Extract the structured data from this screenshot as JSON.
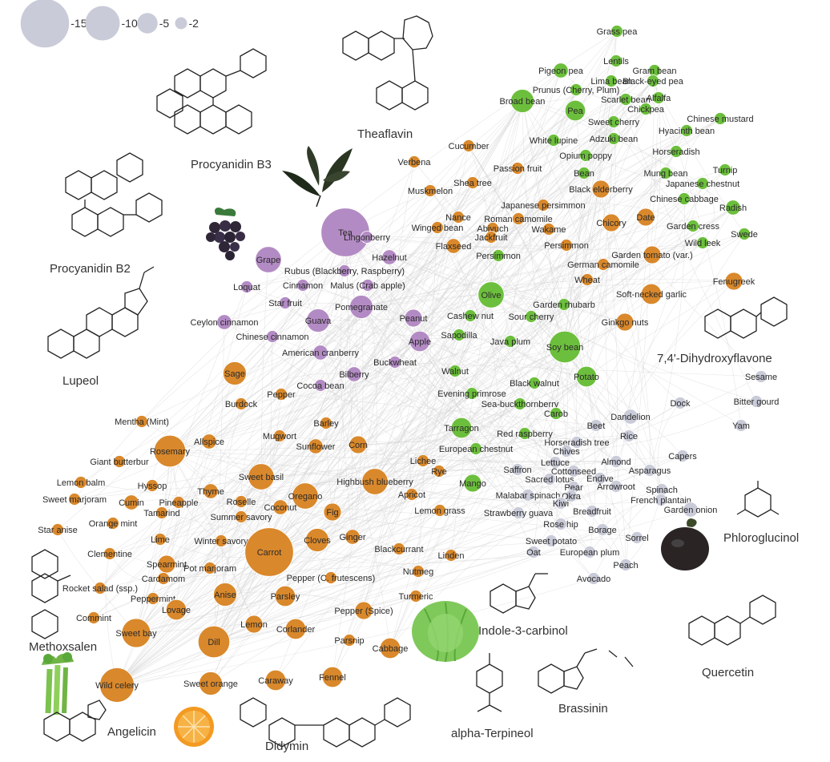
{
  "colors": {
    "purple": "#b38bc4",
    "orange": "#d9882b",
    "green": "#6cbf3c",
    "grey": "#c9cbd8",
    "edge": "#d4d4d4"
  },
  "legend": [
    {
      "value": 15,
      "label": "-15"
    },
    {
      "value": 10,
      "label": "-10"
    },
    {
      "value": 5,
      "label": "-5"
    },
    {
      "value": 2,
      "label": "-2"
    }
  ],
  "compounds": [
    {
      "name": "Procyanidin B3",
      "label": "Procyanidin B3"
    },
    {
      "name": "Theaflavin",
      "label": "Theaflavin"
    },
    {
      "name": "Procyanidin B2",
      "label": "Procyanidin B2"
    },
    {
      "name": "Lupeol",
      "label": "Lupeol"
    },
    {
      "name": "7,4'-Dihydroxyflavone",
      "label": "7,4'-Dihydroxyflavone"
    },
    {
      "name": "Phloroglucinol",
      "label": "Phloroglucinol"
    },
    {
      "name": "Quercetin",
      "label": "Quercetin"
    },
    {
      "name": "Brassinin",
      "label": "Brassinin"
    },
    {
      "name": "alpha-Terpineol",
      "label": "alpha-Terpineol"
    },
    {
      "name": "Indole-3-carbinol",
      "label": "Indole-3-carbinol"
    },
    {
      "name": "Didymin",
      "label": "Didymin"
    },
    {
      "name": "Angelicin",
      "label": "Angelicin"
    },
    {
      "name": "Methoxsalen",
      "label": "Methoxsalen"
    }
  ],
  "pictures": [
    {
      "name": "tea-leaf",
      "label": "tea leaves"
    },
    {
      "name": "grapes",
      "label": "grapes"
    },
    {
      "name": "cabbage",
      "label": "cabbage"
    },
    {
      "name": "eggplant",
      "label": "eggplant"
    },
    {
      "name": "celery",
      "label": "celery"
    },
    {
      "name": "orange-slice",
      "label": "orange"
    }
  ],
  "foods": [
    {
      "name": "Tea",
      "c": "purple",
      "size": 15
    },
    {
      "name": "Grape",
      "c": "purple",
      "size": 7
    },
    {
      "name": "Lingonberry",
      "c": "purple",
      "size": 2
    },
    {
      "name": "Hazelnut",
      "c": "purple",
      "size": 3
    },
    {
      "name": "Rubus (Blackberry, Raspberry)",
      "c": "purple",
      "size": 2
    },
    {
      "name": "Loquat",
      "c": "purple",
      "size": 2
    },
    {
      "name": "Cinnamon",
      "c": "purple",
      "size": 2
    },
    {
      "name": "Malus (Crab apple)",
      "c": "purple",
      "size": 2
    },
    {
      "name": "Star fruit",
      "c": "purple",
      "size": 2
    },
    {
      "name": "Pomegranate",
      "c": "purple",
      "size": 6
    },
    {
      "name": "Ceylon cinnamon",
      "c": "purple",
      "size": 3
    },
    {
      "name": "Guava",
      "c": "purple",
      "size": 6
    },
    {
      "name": "Peanut",
      "c": "purple",
      "size": 4
    },
    {
      "name": "Chinese cinnamon",
      "c": "purple",
      "size": 2
    },
    {
      "name": "Apple",
      "c": "purple",
      "size": 5
    },
    {
      "name": "American cranberry",
      "c": "purple",
      "size": 3
    },
    {
      "name": "Buckwheat",
      "c": "purple",
      "size": 2
    },
    {
      "name": "Bilberry",
      "c": "purple",
      "size": 3
    },
    {
      "name": "Cocoa bean",
      "c": "purple",
      "size": 2
    },
    {
      "name": "Grass pea",
      "c": "green",
      "size": 2
    },
    {
      "name": "Lentils",
      "c": "green",
      "size": 2
    },
    {
      "name": "Pigeon pea",
      "c": "green",
      "size": 3
    },
    {
      "name": "Gram bean",
      "c": "green",
      "size": 2
    },
    {
      "name": "Lima bean",
      "c": "green",
      "size": 2
    },
    {
      "name": "Black-eyed pea",
      "c": "green",
      "size": 2
    },
    {
      "name": "Prunus (Cherry, Plum)",
      "c": "green",
      "size": 2
    },
    {
      "name": "Broad bean",
      "c": "green",
      "size": 6
    },
    {
      "name": "Scarlet bean",
      "c": "green",
      "size": 2
    },
    {
      "name": "Alfalfa",
      "c": "green",
      "size": 2
    },
    {
      "name": "Pea",
      "c": "green",
      "size": 5
    },
    {
      "name": "Chickpea",
      "c": "green",
      "size": 2
    },
    {
      "name": "Chinese mustard",
      "c": "green",
      "size": 2
    },
    {
      "name": "Sweet cherry",
      "c": "green",
      "size": 2
    },
    {
      "name": "Hyacinth bean",
      "c": "green",
      "size": 2
    },
    {
      "name": "White lupine",
      "c": "green",
      "size": 2
    },
    {
      "name": "Adzuki bean",
      "c": "green",
      "size": 2
    },
    {
      "name": "Opium poppy",
      "c": "green",
      "size": 2
    },
    {
      "name": "Horseradish",
      "c": "green",
      "size": 2
    },
    {
      "name": "Turnip",
      "c": "green",
      "size": 2
    },
    {
      "name": "Bean",
      "c": "green",
      "size": 2
    },
    {
      "name": "Mung bean",
      "c": "green",
      "size": 2
    },
    {
      "name": "Japanese chestnut",
      "c": "green",
      "size": 2
    },
    {
      "name": "Chinese cabbage",
      "c": "green",
      "size": 2
    },
    {
      "name": "Radish",
      "c": "green",
      "size": 3
    },
    {
      "name": "Garden cress",
      "c": "green",
      "size": 2
    },
    {
      "name": "Swede",
      "c": "green",
      "size": 2
    },
    {
      "name": "Wild leek",
      "c": "green",
      "size": 2
    },
    {
      "name": "Olive",
      "c": "green",
      "size": 7
    },
    {
      "name": "Soy bean",
      "c": "green",
      "size": 9
    },
    {
      "name": "Potato",
      "c": "green",
      "size": 5
    },
    {
      "name": "Garden rhubarb",
      "c": "green",
      "size": 2
    },
    {
      "name": "Sour cherry",
      "c": "green",
      "size": 2
    },
    {
      "name": "Sea-buckthornberry",
      "c": "green",
      "size": 2
    },
    {
      "name": "Tarragon",
      "c": "green",
      "size": 5
    },
    {
      "name": "Mango",
      "c": "green",
      "size": 4
    },
    {
      "name": "Black walnut",
      "c": "green",
      "size": 2
    },
    {
      "name": "Walnut",
      "c": "green",
      "size": 2
    },
    {
      "name": "Evening primrose",
      "c": "green",
      "size": 2
    },
    {
      "name": "Carob",
      "c": "green",
      "size": 2
    },
    {
      "name": "Red raspberry",
      "c": "green",
      "size": 2
    },
    {
      "name": "European chestnut",
      "c": "green",
      "size": 2
    },
    {
      "name": "Persimmon",
      "c": "green",
      "size": 2
    },
    {
      "name": "Cashew nut",
      "c": "green",
      "size": 2
    },
    {
      "name": "Sapodilla",
      "c": "green",
      "size": 2
    },
    {
      "name": "Java plum",
      "c": "green",
      "size": 2
    },
    {
      "name": "Cucumber",
      "c": "orange",
      "size": 2
    },
    {
      "name": "Verbena",
      "c": "orange",
      "size": 2
    },
    {
      "name": "Passion fruit",
      "c": "orange",
      "size": 2
    },
    {
      "name": "Shea tree",
      "c": "orange",
      "size": 2
    },
    {
      "name": "Muskmelon",
      "c": "orange",
      "size": 2
    },
    {
      "name": "Black elderberry",
      "c": "orange",
      "size": 4
    },
    {
      "name": "Japanese persimmon",
      "c": "orange",
      "size": 2
    },
    {
      "name": "Nance",
      "c": "orange",
      "size": 2
    },
    {
      "name": "Roman camomile",
      "c": "orange",
      "size": 2
    },
    {
      "name": "Chicory",
      "c": "orange",
      "size": 4
    },
    {
      "name": "Date",
      "c": "orange",
      "size": 4
    },
    {
      "name": "Winged bean",
      "c": "orange",
      "size": 2
    },
    {
      "name": "Abiyuch",
      "c": "orange",
      "size": 2
    },
    {
      "name": "Wakame",
      "c": "orange",
      "size": 2
    },
    {
      "name": "Jackfruit",
      "c": "orange",
      "size": 2
    },
    {
      "name": "Flaxseed",
      "c": "orange",
      "size": 3
    },
    {
      "name": "Persimmon (orange)",
      "c": "orange",
      "size": 2
    },
    {
      "name": "German camomile",
      "c": "orange",
      "size": 2
    },
    {
      "name": "Garden tomato (var.)",
      "c": "orange",
      "size": 4
    },
    {
      "name": "Fenugreek",
      "c": "orange",
      "size": 4
    },
    {
      "name": "Wheat",
      "c": "orange",
      "size": 2
    },
    {
      "name": "Soft-necked garlic",
      "c": "orange",
      "size": 5
    },
    {
      "name": "Ginkgo nuts",
      "c": "orange",
      "size": 4
    },
    {
      "name": "Sage",
      "c": "orange",
      "size": 6
    },
    {
      "name": "Burdock",
      "c": "orange",
      "size": 2
    },
    {
      "name": "Pepper",
      "c": "orange",
      "size": 2
    },
    {
      "name": "Mentha (Mint)",
      "c": "orange",
      "size": 2
    },
    {
      "name": "Barley",
      "c": "orange",
      "size": 2
    },
    {
      "name": "Allspice",
      "c": "orange",
      "size": 3
    },
    {
      "name": "Mugwort",
      "c": "orange",
      "size": 2
    },
    {
      "name": "Sunflower",
      "c": "orange",
      "size": 3
    },
    {
      "name": "Corn",
      "c": "orange",
      "size": 4
    },
    {
      "name": "Rosemary",
      "c": "orange",
      "size": 9
    },
    {
      "name": "Giant butterbur",
      "c": "orange",
      "size": 2
    },
    {
      "name": "Sweet basil",
      "c": "orange",
      "size": 7
    },
    {
      "name": "Highbush blueberry",
      "c": "orange",
      "size": 7
    },
    {
      "name": "Lemon balm",
      "c": "orange",
      "size": 2
    },
    {
      "name": "Hyssop",
      "c": "orange",
      "size": 2
    },
    {
      "name": "Thyme",
      "c": "orange",
      "size": 3
    },
    {
      "name": "Oregano",
      "c": "orange",
      "size": 7
    },
    {
      "name": "Sweet marjoram",
      "c": "orange",
      "size": 2
    },
    {
      "name": "Cumin",
      "c": "orange",
      "size": 3
    },
    {
      "name": "Pineapple",
      "c": "orange",
      "size": 2
    },
    {
      "name": "Roselle",
      "c": "orange",
      "size": 2
    },
    {
      "name": "Coconut",
      "c": "orange",
      "size": 3
    },
    {
      "name": "Fig",
      "c": "orange",
      "size": 4
    },
    {
      "name": "Tamarind",
      "c": "orange",
      "size": 2
    },
    {
      "name": "Summer savory",
      "c": "orange",
      "size": 2
    },
    {
      "name": "Apricot",
      "c": "orange",
      "size": 2
    },
    {
      "name": "Lemon grass",
      "c": "orange",
      "size": 2
    },
    {
      "name": "Star anise",
      "c": "orange",
      "size": 2
    },
    {
      "name": "Orange mint",
      "c": "orange",
      "size": 2
    },
    {
      "name": "Lime",
      "c": "orange",
      "size": 2
    },
    {
      "name": "Winter savory",
      "c": "orange",
      "size": 2
    },
    {
      "name": "Carrot",
      "c": "orange",
      "size": 15
    },
    {
      "name": "Cloves",
      "c": "orange",
      "size": 6
    },
    {
      "name": "Ginger",
      "c": "orange",
      "size": 3
    },
    {
      "name": "Blackcurrant",
      "c": "orange",
      "size": 2
    },
    {
      "name": "Linden",
      "c": "orange",
      "size": 2
    },
    {
      "name": "Clementine",
      "c": "orange",
      "size": 2
    },
    {
      "name": "Spearmint",
      "c": "orange",
      "size": 4
    },
    {
      "name": "Pot marjoram",
      "c": "orange",
      "size": 2
    },
    {
      "name": "Cardamom",
      "c": "orange",
      "size": 2
    },
    {
      "name": "Nutmeg",
      "c": "orange",
      "size": 2
    },
    {
      "name": "Pepper (C. frutescens)",
      "c": "orange",
      "size": 2
    },
    {
      "name": "Rocket salad (ssp.)",
      "c": "orange",
      "size": 2
    },
    {
      "name": "Anise",
      "c": "orange",
      "size": 6
    },
    {
      "name": "Parsley",
      "c": "orange",
      "size": 5
    },
    {
      "name": "Turmeric",
      "c": "orange",
      "size": 2
    },
    {
      "name": "Peppermint",
      "c": "orange",
      "size": 2
    },
    {
      "name": "Lovage",
      "c": "orange",
      "size": 5
    },
    {
      "name": "Pepper (Spice)",
      "c": "orange",
      "size": 4
    },
    {
      "name": "Lemon",
      "c": "orange",
      "size": 4
    },
    {
      "name": "Corlander",
      "c": "orange",
      "size": 5
    },
    {
      "name": "Commint",
      "c": "orange",
      "size": 2
    },
    {
      "name": "Sweet bay",
      "c": "orange",
      "size": 8
    },
    {
      "name": "Dill",
      "c": "orange",
      "size": 9
    },
    {
      "name": "Parsnip",
      "c": "orange",
      "size": 2
    },
    {
      "name": "Cabbage",
      "c": "orange",
      "size": 5
    },
    {
      "name": "Caraway",
      "c": "orange",
      "size": 5
    },
    {
      "name": "Fennel",
      "c": "orange",
      "size": 5
    },
    {
      "name": "Sweet orange",
      "c": "orange",
      "size": 6
    },
    {
      "name": "Wild celery",
      "c": "orange",
      "size": 10
    },
    {
      "name": "Lichee",
      "c": "orange",
      "size": 2
    },
    {
      "name": "Rye",
      "c": "orange",
      "size": 2
    },
    {
      "name": "Sesame",
      "c": "grey",
      "size": 2
    },
    {
      "name": "Bitter gourd",
      "c": "grey",
      "size": 2
    },
    {
      "name": "Dock",
      "c": "grey",
      "size": 2
    },
    {
      "name": "Yam",
      "c": "grey",
      "size": 2
    },
    {
      "name": "Dandelion",
      "c": "grey",
      "size": 3
    },
    {
      "name": "Beet",
      "c": "grey",
      "size": 2
    },
    {
      "name": "Rice",
      "c": "grey",
      "size": 2
    },
    {
      "name": "Horseradish tree",
      "c": "grey",
      "size": 2
    },
    {
      "name": "Capers",
      "c": "grey",
      "size": 2
    },
    {
      "name": "Chives",
      "c": "grey",
      "size": 2
    },
    {
      "name": "Lettuce",
      "c": "grey",
      "size": 2
    },
    {
      "name": "Almond",
      "c": "grey",
      "size": 2
    },
    {
      "name": "Saffron",
      "c": "grey",
      "size": 2
    },
    {
      "name": "Cottonseed",
      "c": "grey",
      "size": 2
    },
    {
      "name": "Asparagus",
      "c": "grey",
      "size": 2
    },
    {
      "name": "Sacred lotus",
      "c": "grey",
      "size": 2
    },
    {
      "name": "Endive",
      "c": "grey",
      "size": 2
    },
    {
      "name": "Pear",
      "c": "grey",
      "size": 2
    },
    {
      "name": "Arrowroot",
      "c": "grey",
      "size": 2
    },
    {
      "name": "Spinach",
      "c": "grey",
      "size": 2
    },
    {
      "name": "Malabar spinach",
      "c": "grey",
      "size": 2
    },
    {
      "name": "Okra",
      "c": "grey",
      "size": 2
    },
    {
      "name": "French plantain",
      "c": "grey",
      "size": 2
    },
    {
      "name": "Kiwi",
      "c": "grey",
      "size": 2
    },
    {
      "name": "Strawberry guava",
      "c": "grey",
      "size": 2
    },
    {
      "name": "Breadfruit",
      "c": "grey",
      "size": 2
    },
    {
      "name": "Garden onion",
      "c": "grey",
      "size": 3
    },
    {
      "name": "Rose hip",
      "c": "grey",
      "size": 2
    },
    {
      "name": "Borage",
      "c": "grey",
      "size": 2
    },
    {
      "name": "Sorrel",
      "c": "grey",
      "size": 2
    },
    {
      "name": "Sweet potato",
      "c": "grey",
      "size": 2
    },
    {
      "name": "Oat",
      "c": "grey",
      "size": 2
    },
    {
      "name": "European plum",
      "c": "grey",
      "size": 2
    },
    {
      "name": "Peach",
      "c": "grey",
      "size": 2
    },
    {
      "name": "Avocado",
      "c": "grey",
      "size": 2
    }
  ]
}
